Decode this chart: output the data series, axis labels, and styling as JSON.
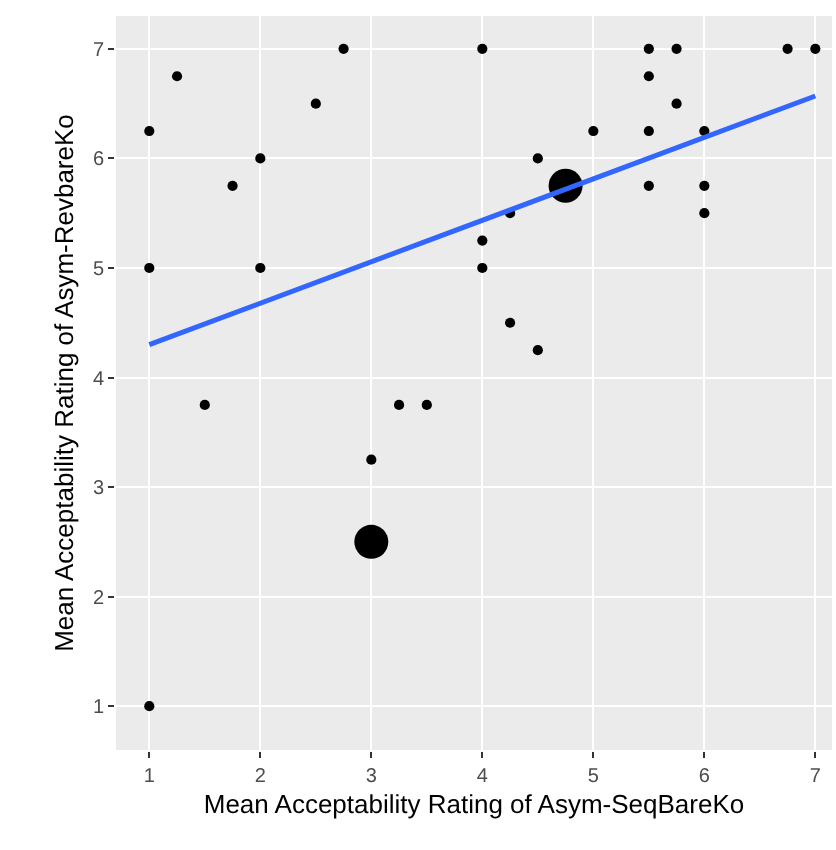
{
  "chart_data": {
    "type": "bubble",
    "xlabel": "Mean Acceptability Rating of Asym-SeqBareKo",
    "ylabel": "Mean Acceptability Rating of Asym-RevbareKo",
    "xlim": [
      0.7,
      7.15
    ],
    "ylim": [
      0.6,
      7.3
    ],
    "xticks": [
      1,
      2,
      3,
      4,
      5,
      6,
      7
    ],
    "yticks": [
      1,
      2,
      3,
      4,
      5,
      6,
      7
    ],
    "grid": true,
    "series": [
      {
        "color": "#000000",
        "x": [
          1,
          1.25,
          1,
          2,
          1.75,
          2,
          2.5,
          2.75,
          1.5,
          3.25,
          3.5,
          3,
          3,
          1,
          4,
          5.5,
          5.75,
          6.75,
          7,
          5.5,
          5.75,
          5,
          5.5,
          6,
          4.5,
          4.75,
          5.5,
          6,
          4.25,
          6,
          4,
          4,
          4.25,
          4.5
        ],
        "values": [
          6.25,
          6.75,
          5,
          6,
          5.75,
          5,
          6.5,
          7,
          3.75,
          3.75,
          3.75,
          3.25,
          2.5,
          1,
          7,
          7,
          7,
          7,
          7,
          6.75,
          6.5,
          6.25,
          6.25,
          6.25,
          6,
          5.75,
          5.75,
          5.75,
          5.5,
          5.5,
          5.25,
          5,
          4.5,
          4.25
        ],
        "sizes": [
          0.09,
          0.09,
          0.09,
          0.09,
          0.09,
          0.09,
          0.09,
          0.09,
          0.09,
          0.09,
          0.09,
          0.09,
          1,
          0.09,
          0.09,
          0.09,
          0.09,
          0.09,
          0.09,
          0.09,
          0.09,
          0.09,
          0.09,
          0.09,
          0.09,
          1,
          0.09,
          0.09,
          0.09,
          0.09,
          0.09,
          0.09,
          0.09,
          0.09
        ]
      },
      {
        "type": "line",
        "color": "#3366ff",
        "x": [
          1,
          7
        ],
        "values": [
          4.3,
          6.57
        ]
      }
    ]
  }
}
